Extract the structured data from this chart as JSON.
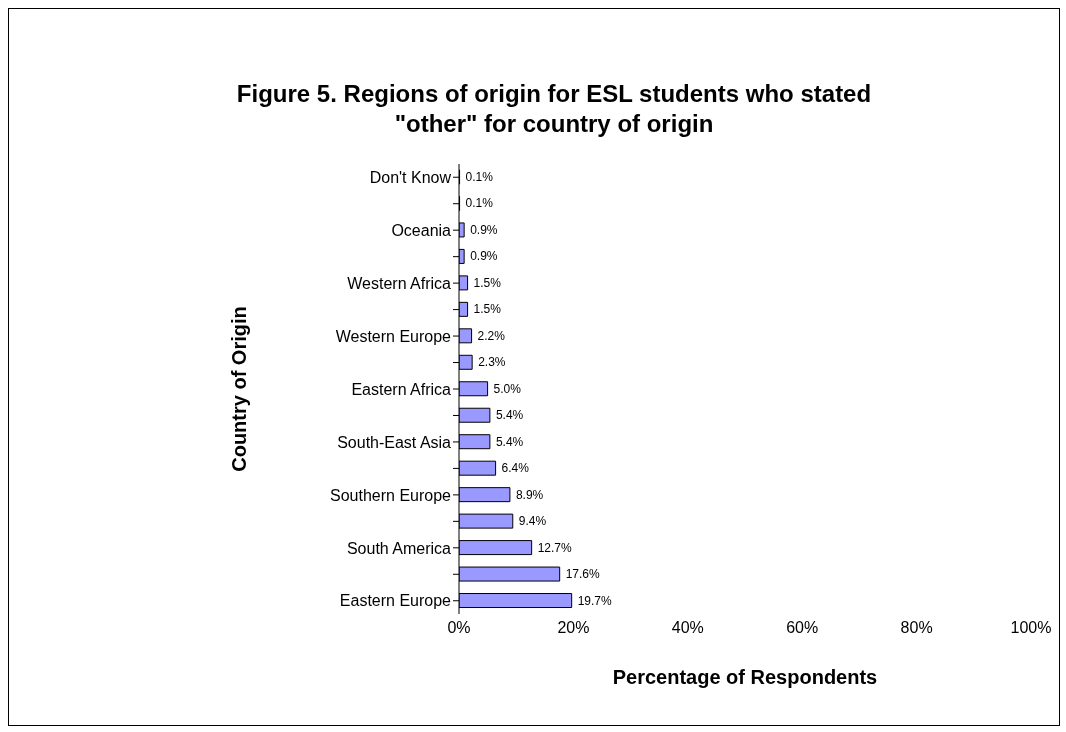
{
  "chart_data": {
    "type": "bar",
    "orientation": "horizontal",
    "title": "Figure 5. Regions of origin for ESL students who stated \"other\" for country of origin",
    "xlabel": "Percentage of Respondents",
    "ylabel": "Country of Origin",
    "categories": [
      "Don't Know",
      null,
      "Oceania",
      null,
      "Western Africa",
      null,
      "Western Europe",
      null,
      "Eastern Africa",
      null,
      "South-East Asia",
      null,
      "Southern Europe",
      null,
      "South America",
      null,
      "Eastern Europe"
    ],
    "values": [
      0.1,
      0.1,
      0.9,
      0.9,
      1.5,
      1.5,
      2.2,
      2.3,
      5.0,
      5.4,
      5.4,
      6.4,
      8.9,
      9.4,
      12.7,
      17.6,
      19.7
    ],
    "value_labels": [
      "0.1%",
      "0.1%",
      "0.9%",
      "0.9%",
      "1.5%",
      "1.5%",
      "2.2%",
      "2.3%",
      "5.0%",
      "5.4%",
      "5.4%",
      "6.4%",
      "8.9%",
      "9.4%",
      "12.7%",
      "17.6%",
      "19.7%"
    ],
    "color": "#9999ff",
    "xlim": [
      0,
      100
    ],
    "xticks": [
      {
        "value": 0,
        "label": "0%"
      },
      {
        "value": 20,
        "label": "20%"
      },
      {
        "value": 40,
        "label": "40%"
      },
      {
        "value": 60,
        "label": "60%"
      },
      {
        "value": 80,
        "label": "80%"
      },
      {
        "value": 100,
        "label": "100%"
      }
    ]
  }
}
